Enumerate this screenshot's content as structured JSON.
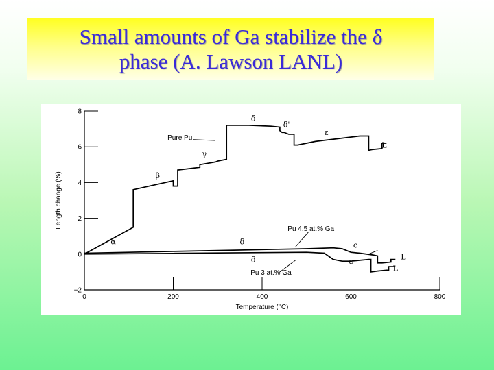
{
  "slide": {
    "title_line1": "Small amounts of Ga stabilize the δ",
    "title_line2": "phase (A. Lawson LANL)"
  },
  "chart_data": {
    "type": "line",
    "title": "",
    "xlabel": "Temperature (°C)",
    "ylabel": "Length change (%)",
    "xlim": [
      0,
      800
    ],
    "ylim": [
      -2,
      8
    ],
    "x_ticks": [
      0,
      200,
      400,
      600,
      800
    ],
    "y_ticks": [
      -2,
      0,
      2,
      4,
      6,
      8
    ],
    "grid": false,
    "series": [
      {
        "name": "Pure Pu",
        "x": [
          0,
          110,
          110,
          200,
          200,
          205,
          210,
          210,
          260,
          260,
          295,
          300,
          320,
          320,
          330,
          370,
          420,
          440,
          440,
          445,
          450,
          455,
          460,
          460,
          472,
          472,
          480,
          520,
          620,
          640,
          640,
          650,
          670,
          670,
          680
        ],
        "y": [
          0,
          1.5,
          3.6,
          4.1,
          3.8,
          3.8,
          3.8,
          4.7,
          4.85,
          5.0,
          5.15,
          5.2,
          5.3,
          7.2,
          7.2,
          7.2,
          7.15,
          7.1,
          6.9,
          6.8,
          6.8,
          6.75,
          6.7,
          6.7,
          6.7,
          6.1,
          6.1,
          6.3,
          6.6,
          6.6,
          5.8,
          5.85,
          5.9,
          6.2,
          6.2
        ]
      },
      {
        "name": "Pu 4.5 at.% Ga",
        "x": [
          0,
          100,
          200,
          300,
          400,
          500,
          560,
          580,
          600,
          620,
          650,
          660,
          660,
          670,
          690,
          690,
          700
        ],
        "y": [
          0.05,
          0.1,
          0.15,
          0.2,
          0.25,
          0.3,
          0.35,
          0.3,
          0.1,
          0.05,
          -0.05,
          -0.1,
          -0.5,
          -0.5,
          -0.45,
          -0.3,
          -0.3
        ]
      },
      {
        "name": "Pu 3 at.% Ga",
        "x": [
          0,
          100,
          200,
          300,
          400,
          500,
          540,
          560,
          580,
          600,
          620,
          640,
          645,
          645,
          660,
          680,
          685,
          685,
          700
        ],
        "y": [
          0,
          0.02,
          0.04,
          0.06,
          0.08,
          0.1,
          0.05,
          -0.3,
          -0.4,
          -0.4,
          -0.35,
          -0.3,
          -0.3,
          -1.0,
          -0.95,
          -0.9,
          -0.9,
          -0.7,
          -0.7
        ]
      }
    ],
    "annotations": [
      {
        "text": "Pure Pu",
        "x": 215,
        "y": 6.4,
        "kind": "label"
      },
      {
        "text": "α",
        "x": 65,
        "y": 0.55,
        "kind": "phase"
      },
      {
        "text": "β",
        "x": 165,
        "y": 4.25,
        "kind": "phase"
      },
      {
        "text": "γ",
        "x": 270,
        "y": 5.45,
        "kind": "phase"
      },
      {
        "text": "δ",
        "x": 380,
        "y": 7.45,
        "kind": "phase"
      },
      {
        "text": "δ'",
        "x": 455,
        "y": 7.1,
        "kind": "phase"
      },
      {
        "text": "ε",
        "x": 545,
        "y": 6.65,
        "kind": "phase"
      },
      {
        "text": "L",
        "x": 675,
        "y": 5.95,
        "kind": "phase"
      },
      {
        "text": "δ",
        "x": 355,
        "y": 0.55,
        "kind": "phase"
      },
      {
        "text": "δ",
        "x": 380,
        "y": -0.45,
        "kind": "phase"
      },
      {
        "text": "c",
        "x": 610,
        "y": 0.35,
        "kind": "phase"
      },
      {
        "text": "ε",
        "x": 600,
        "y": -0.55,
        "kind": "phase"
      },
      {
        "text": "L",
        "x": 718,
        "y": -0.3,
        "kind": "phase"
      },
      {
        "text": "L",
        "x": 700,
        "y": -0.95,
        "kind": "phase"
      },
      {
        "text": "Pu 4.5 at.% Ga",
        "x": 510,
        "y": 1.3,
        "kind": "label"
      },
      {
        "text": "Pu 3 at.% Ga",
        "x": 420,
        "y": -1.15,
        "kind": "label"
      }
    ]
  }
}
